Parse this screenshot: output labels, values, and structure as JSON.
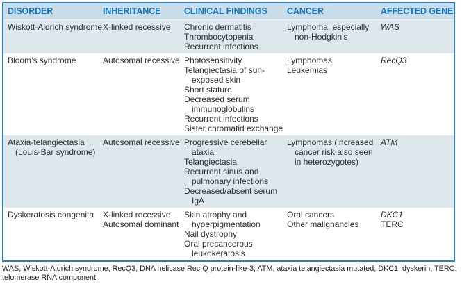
{
  "colors": {
    "table_border_blue": "#2e7cc0",
    "header_bg": "#c9dde9",
    "header_text_blue": "#1476be",
    "shaded_row_bg": "#dee8ec",
    "body_text": "#2b2e30"
  },
  "table": {
    "columns": [
      "DISORDER",
      "INHERITANCE",
      "CLINICAL FINDINGS",
      "CANCER",
      "AFFECTED GENE"
    ],
    "rows": [
      {
        "disorder": "Wiskott-Aldrich syndrome",
        "inheritance": [
          "X-linked recessive"
        ],
        "clinical_findings": [
          "Chronic dermatitis",
          "Thrombocytopenia",
          "Recurrent infections"
        ],
        "cancer": [
          "Lymphoma, especially non-Hodgkin’s"
        ],
        "genes": [
          {
            "name": "WAS",
            "italic": true
          }
        ]
      },
      {
        "disorder": "Bloom’s syndrome",
        "inheritance": [
          "Autosomal recessive"
        ],
        "clinical_findings": [
          "Photosensitivity",
          "Telangiectasia of sun-exposed skin",
          "Short stature",
          "Decreased serum immunoglobulins",
          "Recurrent infections",
          "Sister chromatid exchange"
        ],
        "cancer": [
          "Lymphomas",
          "Leukemias"
        ],
        "genes": [
          {
            "name": "RecQ3",
            "italic": true
          }
        ]
      },
      {
        "disorder": "Ataxia-telangiectasia (Louis-Bar syndrome)",
        "inheritance": [
          "Autosomal recessive"
        ],
        "clinical_findings": [
          "Progressive cerebellar ataxia",
          "Telangiectasia",
          "Recurrent sinus and pulmonary infections",
          "Decreased/absent serum IgA"
        ],
        "cancer": [
          "Lymphomas (increased cancer risk also seen in heterozygotes)"
        ],
        "genes": [
          {
            "name": "ATM",
            "italic": true
          }
        ]
      },
      {
        "disorder": "Dyskeratosis congenita",
        "inheritance": [
          "X-linked recessive",
          "Autosomal dominant"
        ],
        "clinical_findings": [
          "Skin atrophy and hyperpigmentation",
          "Nail dystrophy",
          "Oral precancerous leukokeratosis"
        ],
        "cancer": [
          "Oral cancers",
          "Other malignancies"
        ],
        "genes": [
          {
            "name": "DKC1",
            "italic": true
          },
          {
            "name": "TERC",
            "italic": false
          }
        ]
      }
    ]
  },
  "footnote": "WAS, Wiskott-Aldrich syndrome; RecQ3, DNA helicase Rec Q protein-like-3; ATM, ataxia telangiectasia mutated; DKC1, dyskerin; TERC, telomerase RNA component."
}
